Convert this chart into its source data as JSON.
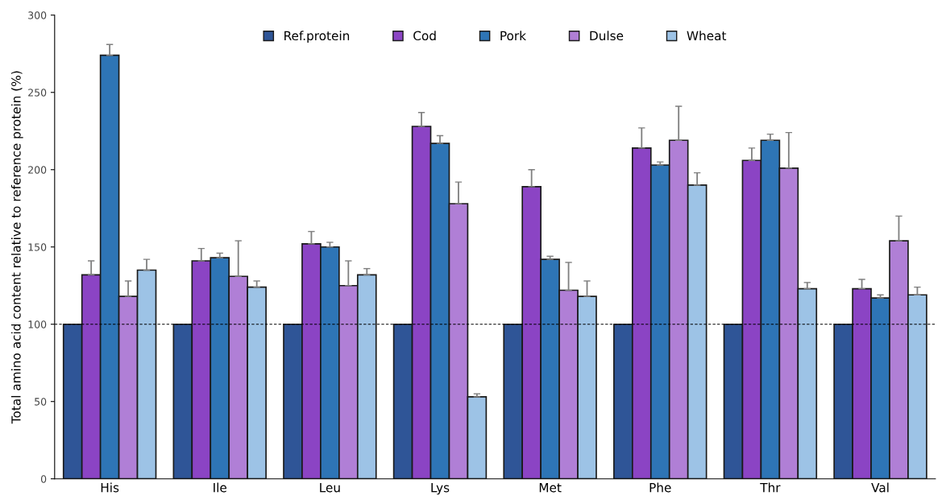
{
  "chart_data": {
    "type": "bar",
    "ylabel": "Total amino acid content relative to reference protein (%)",
    "categories": [
      "His",
      "Ile",
      "Leu",
      "Lys",
      "Met",
      "Phe",
      "Thr",
      "Val"
    ],
    "series": [
      {
        "name": "Ref.protein",
        "color": "#2f5597",
        "values": [
          100,
          100,
          100,
          100,
          100,
          100,
          100,
          100
        ]
      },
      {
        "name": "Cod",
        "color": "#8b44c4",
        "values": [
          132,
          141,
          152,
          228,
          189,
          214,
          206,
          123
        ],
        "errors": [
          [
            132,
            141
          ],
          [
            141,
            149
          ],
          [
            152,
            160
          ],
          [
            228,
            237
          ],
          [
            189,
            200
          ],
          [
            214,
            227
          ],
          [
            206,
            214
          ],
          [
            123,
            129
          ]
        ]
      },
      {
        "name": "Pork",
        "color": "#2e75b6",
        "values": [
          274,
          143,
          150,
          217,
          142,
          203,
          219,
          117
        ],
        "errors": [
          [
            274,
            281
          ],
          [
            143,
            146
          ],
          [
            150,
            153
          ],
          [
            217,
            222
          ],
          [
            142,
            144
          ],
          [
            203,
            205
          ],
          [
            219,
            223
          ],
          [
            117,
            119
          ]
        ]
      },
      {
        "name": "Dulse",
        "color": "#b07fd6",
        "values": [
          118,
          131,
          125,
          178,
          122,
          219,
          201,
          154
        ],
        "errors": [
          [
            118,
            128
          ],
          [
            131,
            154
          ],
          [
            125,
            141
          ],
          [
            178,
            192
          ],
          [
            122,
            140
          ],
          [
            219,
            241
          ],
          [
            201,
            224
          ],
          [
            154,
            170
          ]
        ]
      },
      {
        "name": "Wheat",
        "color": "#9dc3e6",
        "values": [
          135,
          124,
          132,
          53,
          118,
          190,
          123,
          119
        ],
        "errors": [
          [
            135,
            142
          ],
          [
            124,
            128
          ],
          [
            132,
            136
          ],
          [
            53,
            55
          ],
          [
            118,
            128
          ],
          [
            190,
            198
          ],
          [
            123,
            127
          ],
          [
            119,
            124
          ]
        ]
      }
    ],
    "ylim": [
      0,
      300
    ],
    "yticks": [
      0,
      50,
      100,
      150,
      200,
      250,
      300
    ],
    "ref_lines": [
      {
        "axis": "y",
        "value": 100,
        "label": null,
        "color": "#000000",
        "line_style": "dashed"
      }
    ],
    "grid": false,
    "legend": "top"
  }
}
